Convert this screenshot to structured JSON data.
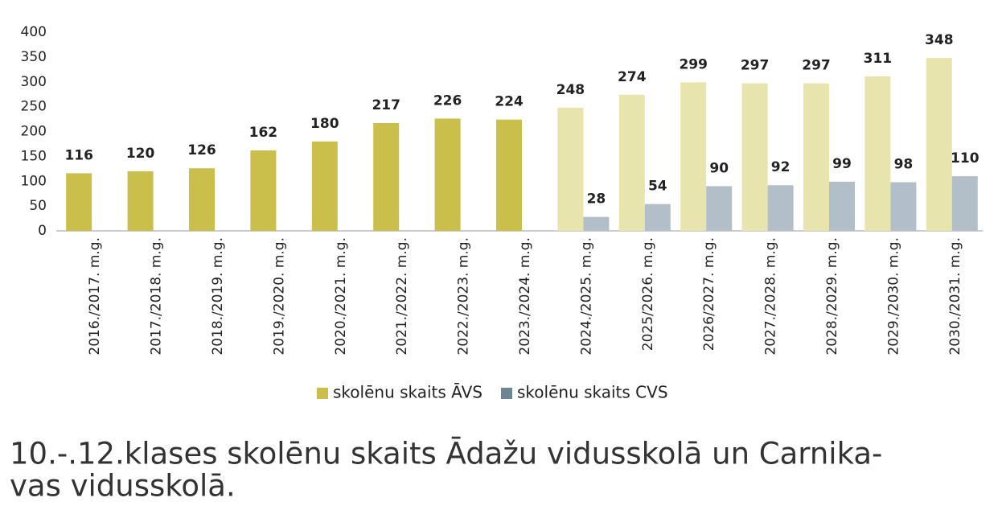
{
  "chart_data": {
    "type": "bar",
    "title": [
      "10.-.12.klases skolēnu skaits Ādažu vidusskolā un Carnika-",
      "vas vidusskolā."
    ],
    "categories": [
      "2016./2017. m.g.",
      "2017./2018. m.g.",
      "2018./2019. m.g.",
      "2019./2020. m.g.",
      "2020./2021. m.g.",
      "2021./2022. m.g.",
      "2022./2023. m.g.",
      "2023./2024. m.g.",
      "2024./2025. m.g.",
      "2025/2026. m.g.",
      "2026/2027. m.g.",
      "2027./2028. m.g.",
      "2028./2029. m.g.",
      "2029./2030. m.g.",
      "2030./2031. m.g."
    ],
    "series": [
      {
        "name": "skolēnu skaits ĀVS",
        "color": "#c9bf4a",
        "colors": [
          "#c9bf4a",
          "#c9bf4a",
          "#c9bf4a",
          "#c9bf4a",
          "#c9bf4a",
          "#c9bf4a",
          "#c9bf4a",
          "#c9bf4a",
          "#e8e4ad",
          "#e8e4ad",
          "#e8e4ad",
          "#e8e4ad",
          "#e8e4ad",
          "#e8e4ad",
          "#e8e4ad"
        ],
        "values": [
          116,
          120,
          126,
          162,
          180,
          217,
          226,
          224,
          248,
          274,
          299,
          297,
          297,
          311,
          348
        ]
      },
      {
        "name": "skolēnu skaits CVS",
        "color": "#6e8594",
        "colors": [
          null,
          null,
          null,
          null,
          null,
          null,
          null,
          null,
          "#b2bfc8",
          "#b2bfc8",
          "#b2bfc8",
          "#b2bfc8",
          "#b2bfc8",
          "#b2bfc8",
          "#b2bfc8"
        ],
        "values": [
          null,
          null,
          null,
          null,
          null,
          null,
          null,
          null,
          28,
          54,
          90,
          92,
          99,
          98,
          110
        ]
      }
    ],
    "ylim": [
      0,
      400
    ],
    "yticks": [
      0,
      50,
      100,
      150,
      200,
      250,
      300,
      350,
      400
    ],
    "grid": false
  }
}
